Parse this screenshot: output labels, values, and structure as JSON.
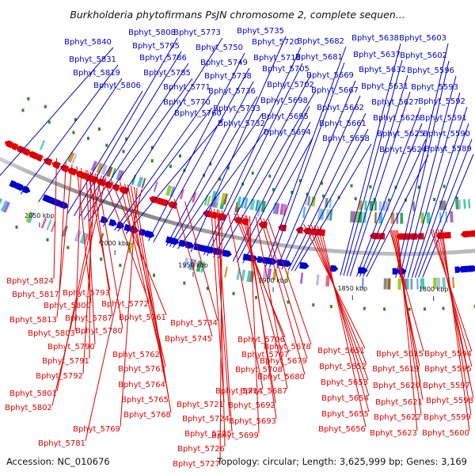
{
  "title": "Burkholderia phytofirmans PsJN chromosome 2, complete sequen...",
  "accession": "Accession: NC_010676",
  "summary": "Topology: circular; Length: 3,625,999 bp; Genes: 3,169",
  "colors": {
    "forward": "#0000cc",
    "reverse": "#e00000",
    "backbone": "#8c8c8c",
    "tick": "#2a8a2a"
  },
  "ticks": [
    "2050 kbp",
    "2000 kbp",
    "1950 kbp",
    "1900 kbp",
    "1850 kbp",
    "1800 kbp"
  ],
  "forward_labels": [
    "Bphyt_5840",
    "Bphyt_5831",
    "Bphyt_5819",
    "Bphyt_5808",
    "Bphyt_5795",
    "Bphyt_5786",
    "Bphyt_5785",
    "Bphyt_5806",
    "Bphyt_5773",
    "Bphyt_5771",
    "Bphyt_5770",
    "Bphyt_5760",
    "Bphyt_5750",
    "Bphyt_5749",
    "Bphyt_5738",
    "Bphyt_5736",
    "Bphyt_5733",
    "Bphyt_5732",
    "Bphyt_5735",
    "Bphyt_5720",
    "Bphyt_5718",
    "Bphyt_5705",
    "Bphyt_5702",
    "Bphyt_5698",
    "Bphyt_5695",
    "Bphyt_5694",
    "Bphyt_5682",
    "Bphyt_5681",
    "Bphyt_5669",
    "Bphyt_5667",
    "Bphyt_5662",
    "Bphyt_5661",
    "Bphyt_5658",
    "Bphyt_5638",
    "Bphyt_5637",
    "Bphyt_5632",
    "Bphyt_5631",
    "Bphyt_5627",
    "Bphyt_5626",
    "Bphyt_5625",
    "Bphyt_5624",
    "Bphyt_5603",
    "Bphyt_5602",
    "Bphyt_5596",
    "Bphyt_5593",
    "Bphyt_5592",
    "Bphyt_5591",
    "Bphyt_5590",
    "Bphyt_5589"
  ],
  "reverse_labels": [
    "Bphyt_5824",
    "Bphyt_5817",
    "Bphyt_5800",
    "Bphyt_5813",
    "Bphyt_5803",
    "Bphyt_5790",
    "Bphyt_5791",
    "Bphyt_5792",
    "Bphyt_5801",
    "Bphyt_5802",
    "Bphyt_5793",
    "Bphyt_5787",
    "Bphyt_5780",
    "Bphyt_5772",
    "Bphyt_5761",
    "Bphyt_5762",
    "Bphyt_5763",
    "Bphyt_5764",
    "Bphyt_5765",
    "Bphyt_5768",
    "Bphyt_5769",
    "Bphyt_5781",
    "Bphyt_5734",
    "Bphyt_5745",
    "Bphyt_5721",
    "Bphyt_5724",
    "Bphyt_5725",
    "Bphyt_5726",
    "Bphyt_5727",
    "Bphyt_5714",
    "Bphyt_5706",
    "Bphyt_5707",
    "Bphyt_5708",
    "Bphyt_5692",
    "Bphyt_5693",
    "Bphyt_5699",
    "Bphyt_5687",
    "Bphyt_5680",
    "Bphyt_5679",
    "Bphyt_5678",
    "Bphyt_5651",
    "Bphyt_5652",
    "Bphyt_5653",
    "Bphyt_5654",
    "Bphyt_5655",
    "Bphyt_5656",
    "Bphyt_5615",
    "Bphyt_5619",
    "Bphyt_5620",
    "Bphyt_5621",
    "Bphyt_5622",
    "Bphyt_5623",
    "Bphyt_5594",
    "Bphyt_5595",
    "Bphyt_5597",
    "Bphyt_5598",
    "Bphyt_5599",
    "Bphyt_5600"
  ]
}
